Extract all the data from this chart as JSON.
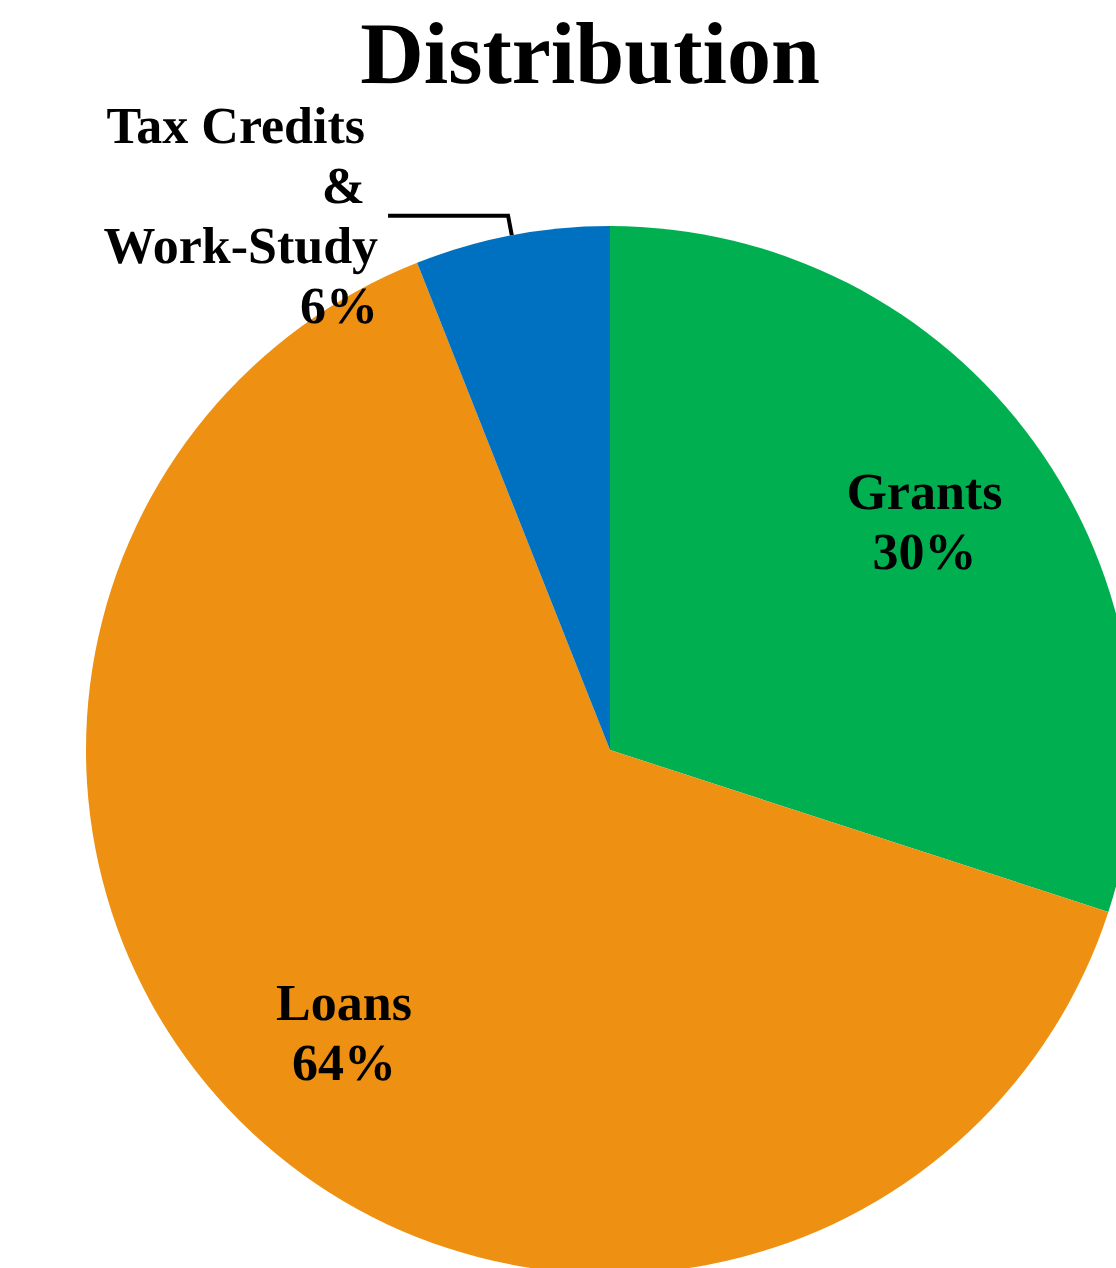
{
  "chart_data": {
    "type": "pie",
    "title": "Distribution",
    "categories": [
      "Grants",
      "Loans",
      "Tax Credits & Work-Study"
    ],
    "values": [
      30,
      64,
      6
    ],
    "colors": [
      "#00b050",
      "#ee9112",
      "#0070c0"
    ],
    "value_labels": [
      "30%",
      "64%",
      "6%"
    ],
    "legend": false
  }
}
